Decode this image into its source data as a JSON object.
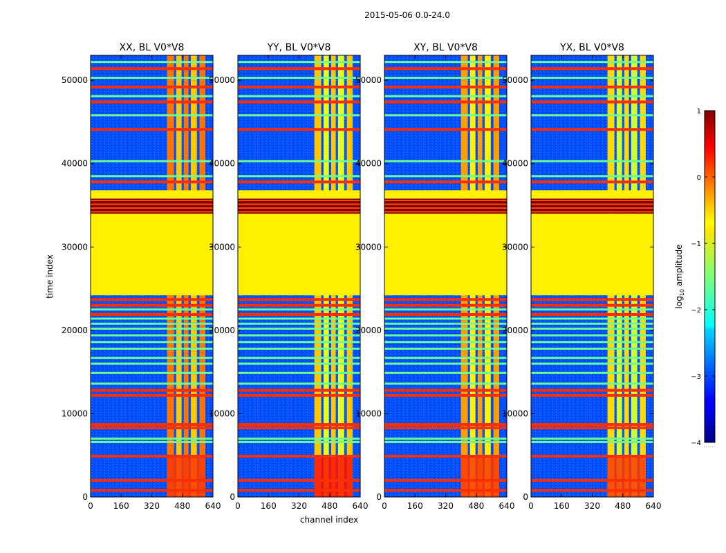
{
  "chart_data": {
    "type": "heatmap",
    "suptitle": "2015-05-06 0.0-24.0",
    "xlabel": "channel index",
    "ylabel": "time index",
    "xlim": [
      0,
      640
    ],
    "ylim": [
      0,
      53000
    ],
    "x_ticks": [
      0,
      160,
      320,
      480,
      640
    ],
    "y_ticks": [
      0,
      10000,
      20000,
      30000,
      40000,
      50000
    ],
    "panels": [
      {
        "title": "XX, BL V0*V8"
      },
      {
        "title": "YY, BL V0*V8"
      },
      {
        "title": "XY, BL V0*V8"
      },
      {
        "title": "YX, BL V0*V8"
      }
    ],
    "colorbar": {
      "label": "log10 amplitude",
      "label_main": "log",
      "label_sub": "10",
      "label_suffix": " amplitude",
      "range": [
        -4,
        1
      ],
      "ticks": [
        "1",
        "0",
        "−1",
        "−2",
        "−3",
        "−4"
      ],
      "colormap": "jet"
    },
    "structure": {
      "rfi_channel_band": [
        400,
        600
      ],
      "flagged_block_time": [
        24200,
        34000
      ],
      "saturated_block_time": [
        34000,
        35800
      ],
      "flag_fill_log10": -0.8,
      "background_log10": -3.0,
      "bright_rows_time": [
        800,
        2000,
        4900,
        8300,
        8700,
        12200,
        12800,
        21900,
        23000,
        23700,
        37800,
        44100,
        47400,
        49200,
        51400
      ],
      "moderate_rows_time": [
        6600,
        7000,
        13600,
        14900,
        16000,
        16700,
        17800,
        18600,
        19400,
        20200,
        20800,
        21400,
        22500,
        38500,
        40300,
        45800,
        48100,
        50300,
        52200
      ]
    }
  }
}
